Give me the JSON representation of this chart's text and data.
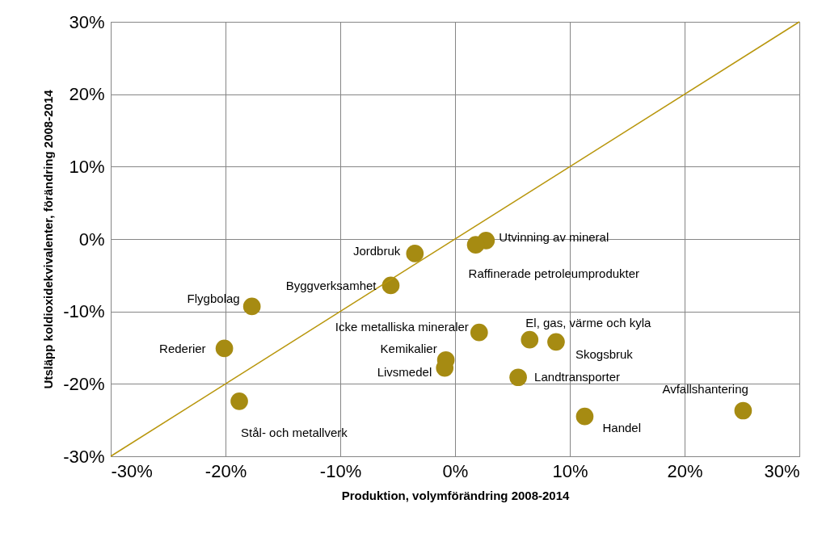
{
  "chart_data": {
    "type": "scatter",
    "xlabel": "Produktion, volymförändring 2008-2014",
    "ylabel": "Utsläpp koldioxidekvivalenter, förändring 2008-2014",
    "x": [
      -3.5,
      -5.6,
      -17.7,
      -20.1,
      -18.8,
      2.1,
      -0.8,
      -0.9,
      2.7,
      1.8,
      6.5,
      8.8,
      5.5,
      11.3,
      25.1
    ],
    "series": [
      {
        "color": "#a68b12",
        "marker": "circle",
        "values": [
          -2.0,
          -6.4,
          -9.3,
          -15.1,
          -22.4,
          -12.9,
          -16.7,
          -17.8,
          -0.2,
          -0.8,
          -13.9,
          -14.2,
          -19.1,
          -24.5,
          -23.7
        ]
      },
      {
        "type": "line",
        "line_style": "solid",
        "color": "#b8960c",
        "x": [
          -30,
          30
        ],
        "values": [
          -30,
          30
        ]
      }
    ],
    "annotations": [
      {
        "text": "Jordbruk",
        "x": -3.5,
        "y": -2.0
      },
      {
        "text": "Byggverksamhet",
        "x": -5.6,
        "y": -6.4
      },
      {
        "text": "Flygbolag",
        "x": -17.7,
        "y": -9.3
      },
      {
        "text": "Rederier",
        "x": -20.1,
        "y": -15.1
      },
      {
        "text": "Stål- och metallverk",
        "x": -18.8,
        "y": -22.4
      },
      {
        "text": "Icke metalliska mineraler",
        "x": 2.1,
        "y": -12.9
      },
      {
        "text": "Kemikalier",
        "x": -0.8,
        "y": -16.7
      },
      {
        "text": "Livsmedel",
        "x": -0.9,
        "y": -17.8
      },
      {
        "text": "Utvinning av mineral",
        "x": 2.7,
        "y": -0.2
      },
      {
        "text": "Raffinerade petroleumprodukter",
        "x": 1.8,
        "y": -0.8
      },
      {
        "text": "El, gas, värme och kyla",
        "x": 6.5,
        "y": -13.9
      },
      {
        "text": "Skogsbruk",
        "x": 8.8,
        "y": -14.2
      },
      {
        "text": "Landtransporter",
        "x": 5.5,
        "y": -19.1
      },
      {
        "text": "Handel",
        "x": 11.3,
        "y": -24.5
      },
      {
        "text": "Avfallshantering",
        "x": 25.1,
        "y": -23.7
      }
    ],
    "xlim": [
      -30,
      30
    ],
    "xticks": [
      {
        "value": -30,
        "label": "-30%"
      },
      {
        "value": -20,
        "label": "-20%"
      },
      {
        "value": -10,
        "label": "-10%"
      },
      {
        "value": 0,
        "label": "0%"
      },
      {
        "value": 10,
        "label": "10%"
      },
      {
        "value": 20,
        "label": "20%"
      },
      {
        "value": 30,
        "label": "30%"
      }
    ],
    "ylim": [
      -30,
      30
    ],
    "yticks": [
      {
        "value": -30,
        "label": "-30%"
      },
      {
        "value": -20,
        "label": "-20%"
      },
      {
        "value": -10,
        "label": "-10%"
      },
      {
        "value": 0,
        "label": "0%"
      },
      {
        "value": 10,
        "label": "10%"
      },
      {
        "value": 20,
        "label": "20%"
      },
      {
        "value": 30,
        "label": "30%"
      }
    ],
    "grid": true
  }
}
